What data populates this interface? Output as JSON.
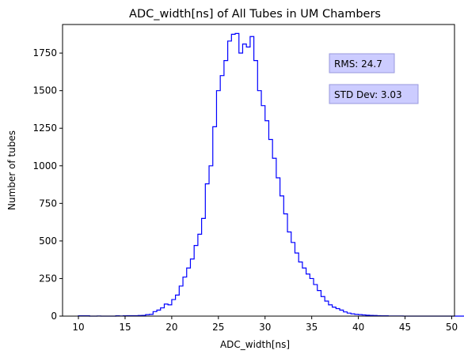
{
  "chart_data": {
    "type": "histogram",
    "title": "ADC_width[ns] of All Tubes in UM Chambers",
    "xlabel": "ADC_width[ns]",
    "ylabel": "Number of tubes",
    "xlim": [
      8.3,
      50.3
    ],
    "ylim": [
      0,
      1940
    ],
    "x_ticks": [
      10,
      15,
      20,
      25,
      30,
      35,
      40,
      45,
      50
    ],
    "y_ticks": [
      0,
      250,
      500,
      750,
      1000,
      1250,
      1500,
      1750
    ],
    "grid": false,
    "series": [
      {
        "color": "#0000ff",
        "step": "post",
        "x_start": 10.0,
        "bin_width": 0.4,
        "counts": [
          2,
          2,
          2,
          0,
          0,
          1,
          0,
          0,
          0,
          0,
          2,
          1,
          2,
          3,
          3,
          3,
          4,
          5,
          10,
          12,
          30,
          40,
          55,
          80,
          75,
          110,
          140,
          200,
          260,
          320,
          380,
          470,
          545,
          650,
          880,
          1000,
          1260,
          1500,
          1600,
          1700,
          1830,
          1875,
          1880,
          1750,
          1810,
          1790,
          1860,
          1700,
          1500,
          1400,
          1300,
          1175,
          1050,
          920,
          800,
          680,
          560,
          490,
          420,
          360,
          320,
          280,
          250,
          210,
          170,
          130,
          100,
          75,
          60,
          50,
          40,
          28,
          20,
          15,
          12,
          10,
          8,
          6,
          5,
          4,
          3,
          2,
          2,
          1,
          1,
          1,
          1,
          0,
          0,
          0,
          0,
          0,
          0,
          0,
          0,
          0,
          0,
          0,
          0,
          0,
          0,
          0,
          0,
          0,
          0,
          0,
          0,
          0,
          0,
          0,
          0,
          0,
          1,
          0,
          0,
          0,
          0,
          0,
          0,
          0,
          0,
          0,
          0,
          0,
          0,
          0,
          0,
          0,
          0
        ]
      }
    ],
    "annotations": [
      {
        "text": "RMS: 24.7",
        "style": "box",
        "facecolor": "#ccccff"
      },
      {
        "text": "STD Dev: 3.03",
        "style": "box",
        "facecolor": "#ccccff"
      }
    ]
  }
}
